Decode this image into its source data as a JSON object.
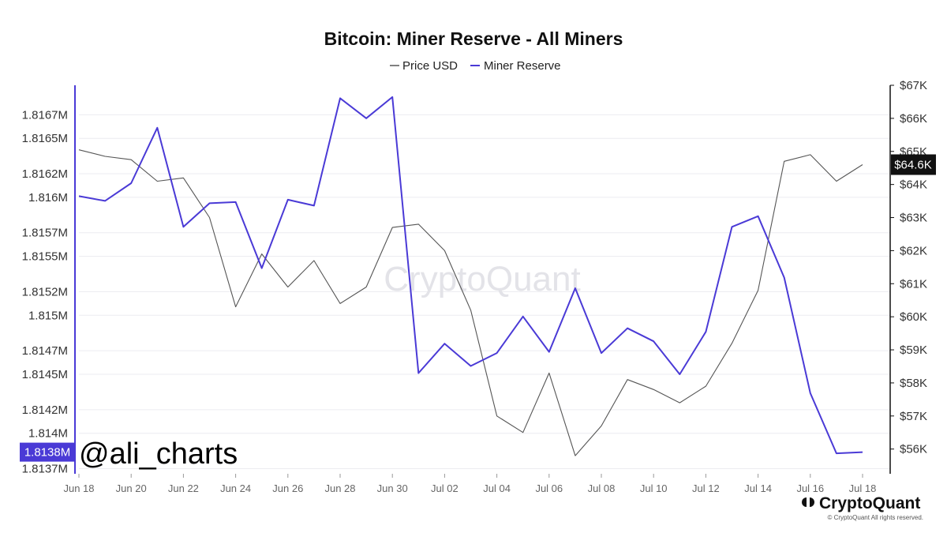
{
  "chart_data": {
    "type": "line",
    "title": "Bitcoin: Miner Reserve - All Miners",
    "categories": [
      "Jun 18",
      "Jun 19",
      "Jun 20",
      "Jun 21",
      "Jun 22",
      "Jun 23",
      "Jun 24",
      "Jun 25",
      "Jun 26",
      "Jun 27",
      "Jun 28",
      "Jun 29",
      "Jun 30",
      "Jul 01",
      "Jul 02",
      "Jul 03",
      "Jul 04",
      "Jul 05",
      "Jul 06",
      "Jul 07",
      "Jul 08",
      "Jul 09",
      "Jul 10",
      "Jul 11",
      "Jul 12",
      "Jul 13",
      "Jul 14",
      "Jul 15",
      "Jul 16",
      "Jul 17",
      "Jul 18"
    ],
    "xticks": [
      "Jun 18",
      "Jun 20",
      "Jun 22",
      "Jun 24",
      "Jun 26",
      "Jun 28",
      "Jun 30",
      "Jul 02",
      "Jul 04",
      "Jul 06",
      "Jul 08",
      "Jul 10",
      "Jul 12",
      "Jul 14",
      "Jul 16",
      "Jul 18"
    ],
    "series": [
      {
        "name": "Price USD",
        "axis": "right",
        "color": "#555555",
        "values": [
          65050,
          64850,
          64750,
          64100,
          64200,
          63000,
          60300,
          61900,
          60900,
          61700,
          60400,
          60900,
          62700,
          62800,
          62000,
          60200,
          57000,
          56500,
          58300,
          55800,
          56700,
          58100,
          57800,
          57400,
          57900,
          59200,
          60800,
          64700,
          64900,
          64100,
          64600
        ]
      },
      {
        "name": "Miner Reserve",
        "axis": "left",
        "color": "#4a3ad6",
        "values": [
          1.81601,
          1.81597,
          1.81612,
          1.81659,
          1.81575,
          1.81595,
          1.81596,
          1.8154,
          1.81598,
          1.81593,
          1.81684,
          1.81667,
          1.81685,
          1.81451,
          1.81476,
          1.81457,
          1.81468,
          1.81499,
          1.81469,
          1.81523,
          1.81468,
          1.81489,
          1.81478,
          1.8145,
          1.81486,
          1.81575,
          1.81584,
          1.81532,
          1.81434,
          1.81383,
          1.81384
        ]
      }
    ],
    "left_axis": {
      "ticks": [
        "1.8167M",
        "1.8165M",
        "1.8162M",
        "1.816M",
        "1.8157M",
        "1.8155M",
        "1.8152M",
        "1.815M",
        "1.8147M",
        "1.8145M",
        "1.8142M",
        "1.814M",
        "1.8137M"
      ],
      "tick_values": [
        1.8167,
        1.8165,
        1.8162,
        1.816,
        1.8157,
        1.8155,
        1.8152,
        1.815,
        1.8147,
        1.8145,
        1.8142,
        1.814,
        1.8137
      ],
      "range": [
        1.81367,
        1.81695
      ],
      "current_value_label": "1.8138M",
      "current_value": 1.81384,
      "color": "#4a3ad6"
    },
    "right_axis": {
      "ticks": [
        "$67K",
        "$66K",
        "$65K",
        "$64K",
        "$63K",
        "$62K",
        "$61K",
        "$60K",
        "$59K",
        "$58K",
        "$57K",
        "$56K"
      ],
      "tick_values": [
        67000,
        66000,
        65000,
        64000,
        63000,
        62000,
        61000,
        60000,
        59000,
        58000,
        57000,
        56000
      ],
      "range": [
        55300,
        67000
      ],
      "current_value_label": "$64.6K",
      "current_value": 64600,
      "color": "#111111"
    },
    "legend": {
      "position": "top-center"
    },
    "grid": true
  },
  "watermark": "CryptoQuant",
  "handle": "@ali_charts",
  "brand": {
    "name": "CryptoQuant",
    "copyright": "© CryptoQuant All rights reserved."
  }
}
